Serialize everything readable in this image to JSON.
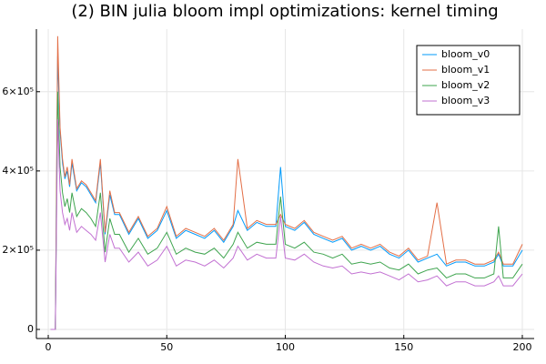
{
  "chart_data": {
    "type": "line",
    "title": "(2) BIN julia bloom impl optimizations: kernel timing",
    "x": [
      1,
      2,
      3,
      4,
      5,
      6,
      7,
      8,
      9,
      10,
      12,
      14,
      16,
      18,
      20,
      22,
      24,
      26,
      28,
      30,
      34,
      38,
      42,
      46,
      50,
      54,
      58,
      62,
      66,
      70,
      74,
      78,
      80,
      84,
      88,
      92,
      96,
      98,
      100,
      104,
      108,
      112,
      116,
      120,
      124,
      128,
      132,
      136,
      140,
      144,
      148,
      152,
      156,
      160,
      164,
      168,
      172,
      176,
      180,
      184,
      188,
      190,
      192,
      196,
      200
    ],
    "series": [
      {
        "name": "bloom_v0",
        "color": "#009afa",
        "values": [
          0,
          0,
          0,
          690000,
          500000,
          420000,
          380000,
          400000,
          360000,
          420000,
          350000,
          370000,
          360000,
          340000,
          320000,
          420000,
          240000,
          340000,
          290000,
          290000,
          240000,
          280000,
          230000,
          250000,
          300000,
          230000,
          250000,
          240000,
          230000,
          250000,
          220000,
          260000,
          300000,
          250000,
          270000,
          260000,
          260000,
          410000,
          260000,
          250000,
          270000,
          240000,
          230000,
          220000,
          230000,
          200000,
          210000,
          200000,
          210000,
          190000,
          180000,
          200000,
          170000,
          180000,
          190000,
          160000,
          170000,
          170000,
          160000,
          160000,
          170000,
          190000,
          160000,
          160000,
          200000
        ]
      },
      {
        "name": "bloom_v1",
        "color": "#e36f47",
        "values": [
          0,
          0,
          0,
          740000,
          510000,
          430000,
          385000,
          410000,
          365000,
          430000,
          355000,
          375000,
          365000,
          345000,
          325000,
          430000,
          245000,
          350000,
          295000,
          295000,
          245000,
          285000,
          235000,
          255000,
          310000,
          235000,
          255000,
          245000,
          235000,
          255000,
          225000,
          265000,
          430000,
          255000,
          275000,
          265000,
          265000,
          290000,
          265000,
          255000,
          275000,
          245000,
          235000,
          225000,
          235000,
          205000,
          215000,
          205000,
          215000,
          195000,
          185000,
          205000,
          175000,
          185000,
          320000,
          165000,
          175000,
          175000,
          165000,
          165000,
          175000,
          195000,
          165000,
          165000,
          215000
        ]
      },
      {
        "name": "bloom_v2",
        "color": "#3ea44e",
        "values": [
          0,
          0,
          0,
          600000,
          410000,
          345000,
          310000,
          330000,
          295000,
          345000,
          285000,
          305000,
          295000,
          280000,
          260000,
          345000,
          195000,
          280000,
          240000,
          240000,
          195000,
          230000,
          190000,
          205000,
          245000,
          190000,
          205000,
          195000,
          190000,
          205000,
          180000,
          215000,
          245000,
          205000,
          220000,
          215000,
          215000,
          335000,
          215000,
          205000,
          220000,
          195000,
          190000,
          180000,
          190000,
          165000,
          170000,
          165000,
          170000,
          155000,
          150000,
          165000,
          140000,
          150000,
          155000,
          130000,
          140000,
          140000,
          130000,
          130000,
          140000,
          260000,
          130000,
          130000,
          165000
        ]
      },
      {
        "name": "bloom_v3",
        "color": "#c271d2",
        "values": [
          0,
          0,
          0,
          530000,
          350000,
          295000,
          265000,
          280000,
          250000,
          295000,
          245000,
          260000,
          250000,
          240000,
          225000,
          295000,
          170000,
          240000,
          205000,
          205000,
          170000,
          195000,
          160000,
          175000,
          210000,
          160000,
          175000,
          170000,
          160000,
          175000,
          155000,
          180000,
          210000,
          175000,
          190000,
          180000,
          180000,
          285000,
          180000,
          175000,
          190000,
          170000,
          160000,
          155000,
          160000,
          140000,
          145000,
          140000,
          145000,
          135000,
          125000,
          140000,
          120000,
          125000,
          135000,
          110000,
          120000,
          120000,
          110000,
          110000,
          120000,
          135000,
          110000,
          110000,
          140000
        ]
      }
    ],
    "xlim": [
      -5,
      205
    ],
    "xticks": [
      0,
      50,
      100,
      150,
      200
    ],
    "ylim": [
      -23000,
      758000
    ],
    "yticks": [
      0,
      {
        "value": 200000,
        "label": "2×10⁵"
      },
      {
        "value": 400000,
        "label": "4×10⁵"
      },
      {
        "value": 600000,
        "label": "6×10⁵"
      }
    ],
    "grid": true,
    "legend": "top-right"
  }
}
